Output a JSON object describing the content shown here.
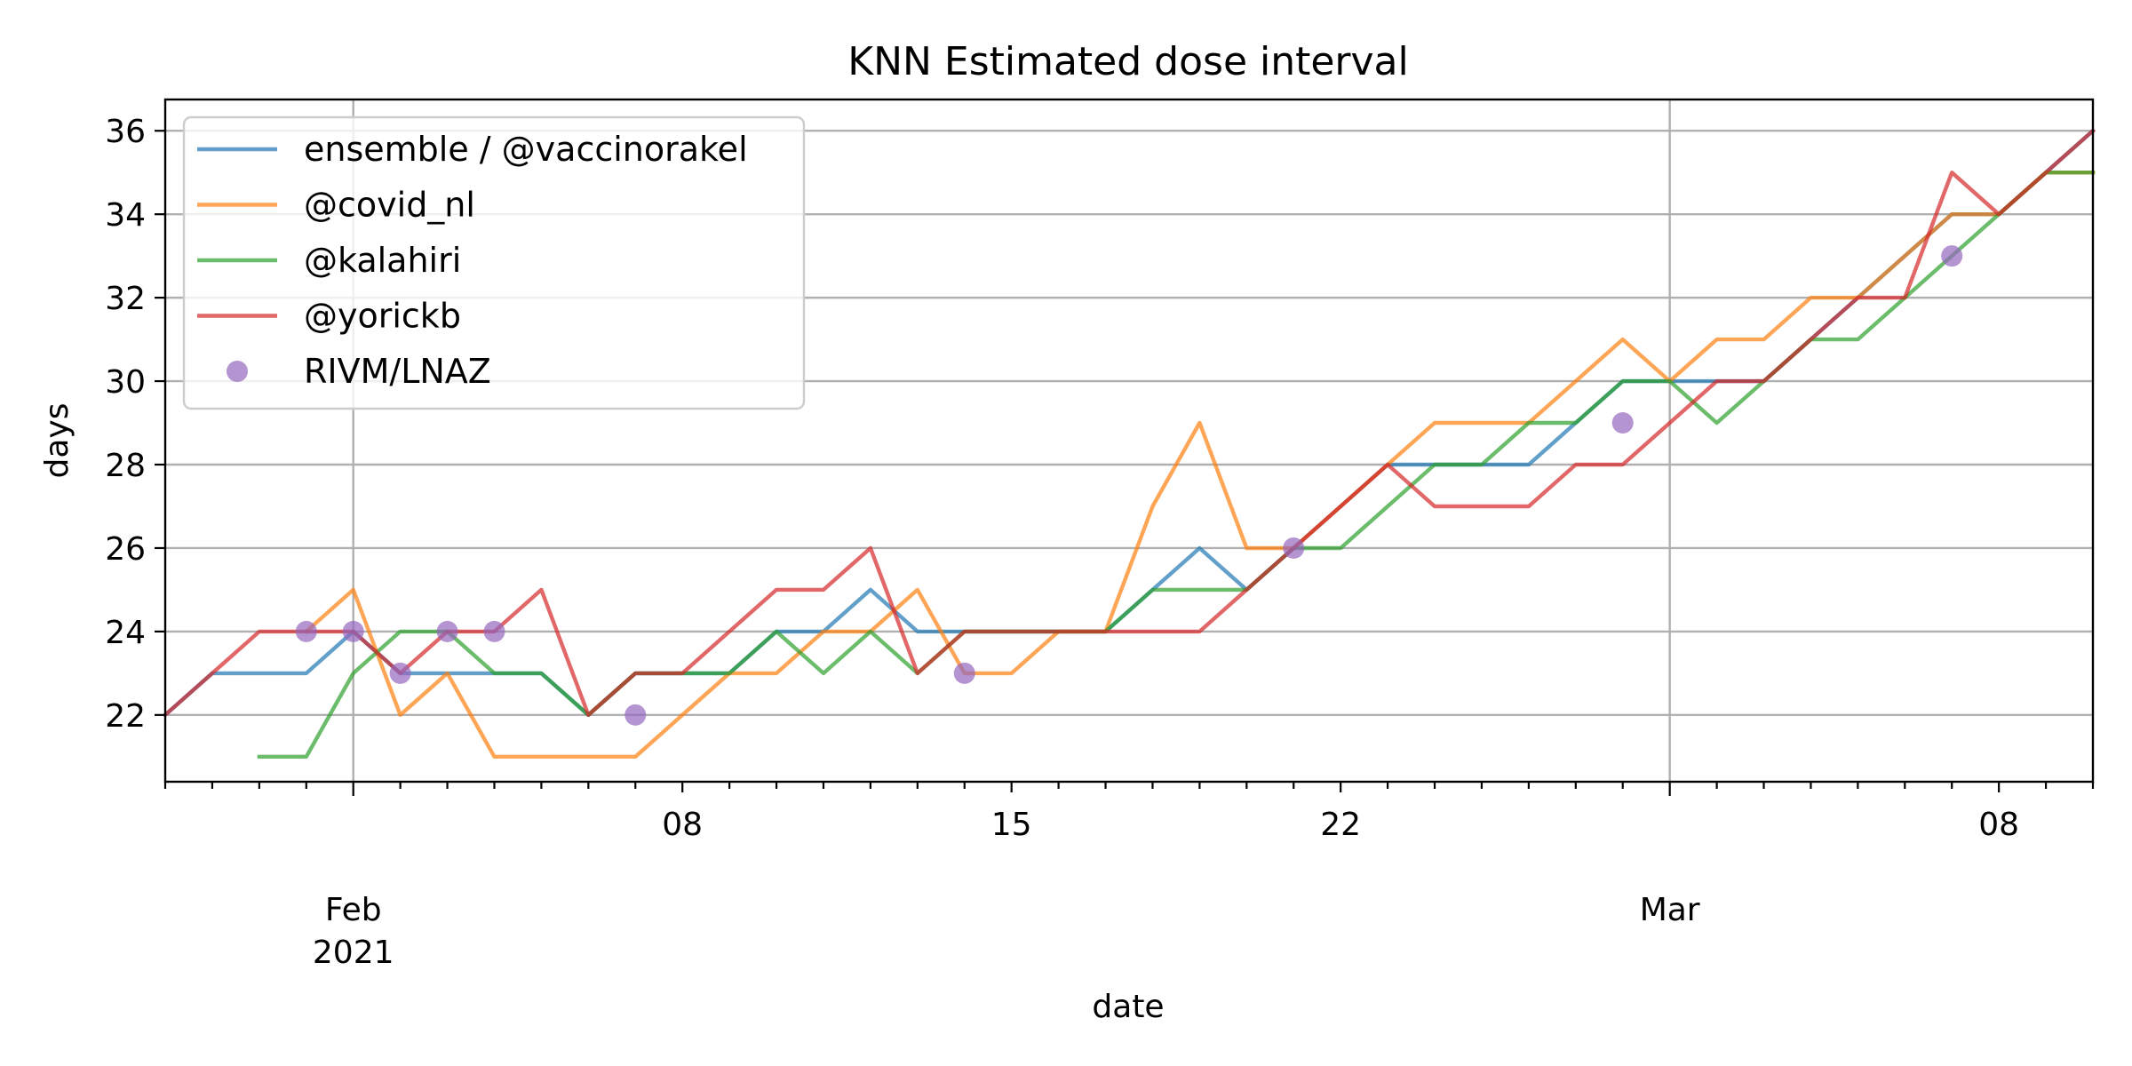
{
  "chart_data": {
    "type": "line",
    "title": "KNN Estimated dose interval",
    "xlabel": "date",
    "ylabel": "days",
    "x_range": [
      "2021-01-28",
      "2021-03-10"
    ],
    "ylim": [
      20.4,
      36.75
    ],
    "y_ticks": [
      22,
      24,
      26,
      28,
      30,
      32,
      34,
      36
    ],
    "x_ticks": [
      {
        "date": "2021-02-01",
        "label": "Feb",
        "sublabel": "2021"
      },
      {
        "date": "2021-02-08",
        "label": "08"
      },
      {
        "date": "2021-02-15",
        "label": "15"
      },
      {
        "date": "2021-02-22",
        "label": "22"
      },
      {
        "date": "2021-03-01",
        "label": "Mar"
      },
      {
        "date": "2021-03-08",
        "label": "08"
      }
    ],
    "grid": true,
    "legend_position": "upper-left",
    "series": [
      {
        "name": "ensemble / @vaccinorakel",
        "kind": "line",
        "color": "#1f77b4",
        "points": [
          [
            "2021-01-28",
            22
          ],
          [
            "2021-01-29",
            23
          ],
          [
            "2021-01-30",
            23
          ],
          [
            "2021-01-31",
            23
          ],
          [
            "2021-02-01",
            24
          ],
          [
            "2021-02-02",
            23
          ],
          [
            "2021-02-03",
            23
          ],
          [
            "2021-02-04",
            23
          ],
          [
            "2021-02-05",
            23
          ],
          [
            "2021-02-06",
            22
          ],
          [
            "2021-02-07",
            23
          ],
          [
            "2021-02-08",
            23
          ],
          [
            "2021-02-09",
            23
          ],
          [
            "2021-02-10",
            24
          ],
          [
            "2021-02-11",
            24
          ],
          [
            "2021-02-12",
            25
          ],
          [
            "2021-02-13",
            24
          ],
          [
            "2021-02-14",
            24
          ],
          [
            "2021-02-15",
            24
          ],
          [
            "2021-02-16",
            24
          ],
          [
            "2021-02-17",
            24
          ],
          [
            "2021-02-18",
            25
          ],
          [
            "2021-02-19",
            26
          ],
          [
            "2021-02-20",
            25
          ],
          [
            "2021-02-21",
            26
          ],
          [
            "2021-02-22",
            27
          ],
          [
            "2021-02-23",
            28
          ],
          [
            "2021-02-24",
            28
          ],
          [
            "2021-02-25",
            28
          ],
          [
            "2021-02-26",
            28
          ],
          [
            "2021-02-27",
            29
          ],
          [
            "2021-02-28",
            30
          ],
          [
            "2021-03-01",
            30
          ],
          [
            "2021-03-02",
            30
          ],
          [
            "2021-03-03",
            30
          ],
          [
            "2021-03-04",
            31
          ],
          [
            "2021-03-05",
            32
          ],
          [
            "2021-03-06",
            33
          ],
          [
            "2021-03-07",
            34
          ],
          [
            "2021-03-08",
            34
          ],
          [
            "2021-03-09",
            35
          ],
          [
            "2021-03-10",
            36
          ]
        ]
      },
      {
        "name": "@covid_nl",
        "kind": "line",
        "color": "#ff7f0e",
        "points": [
          [
            "2021-01-31",
            24
          ],
          [
            "2021-02-01",
            25
          ],
          [
            "2021-02-02",
            22
          ],
          [
            "2021-02-03",
            23
          ],
          [
            "2021-02-04",
            21
          ],
          [
            "2021-02-05",
            21
          ],
          [
            "2021-02-06",
            21
          ],
          [
            "2021-02-07",
            21
          ],
          [
            "2021-02-08",
            22
          ],
          [
            "2021-02-09",
            23
          ],
          [
            "2021-02-10",
            23
          ],
          [
            "2021-02-11",
            24
          ],
          [
            "2021-02-12",
            24
          ],
          [
            "2021-02-13",
            25
          ],
          [
            "2021-02-14",
            23
          ],
          [
            "2021-02-15",
            23
          ],
          [
            "2021-02-16",
            24
          ],
          [
            "2021-02-17",
            24
          ],
          [
            "2021-02-18",
            27
          ],
          [
            "2021-02-19",
            29
          ],
          [
            "2021-02-20",
            26
          ],
          [
            "2021-02-21",
            26
          ],
          [
            "2021-02-22",
            27
          ],
          [
            "2021-02-23",
            28
          ],
          [
            "2021-02-24",
            29
          ],
          [
            "2021-02-25",
            29
          ],
          [
            "2021-02-26",
            29
          ],
          [
            "2021-02-27",
            30
          ],
          [
            "2021-02-28",
            31
          ],
          [
            "2021-03-01",
            30
          ],
          [
            "2021-03-02",
            31
          ],
          [
            "2021-03-03",
            31
          ],
          [
            "2021-03-04",
            32
          ],
          [
            "2021-03-05",
            32
          ],
          [
            "2021-03-06",
            33
          ],
          [
            "2021-03-07",
            34
          ],
          [
            "2021-03-08",
            34
          ],
          [
            "2021-03-09",
            35
          ],
          [
            "2021-03-10",
            35
          ]
        ]
      },
      {
        "name": "@kalahiri",
        "kind": "line",
        "color": "#2ca02c",
        "points": [
          [
            "2021-01-30",
            21
          ],
          [
            "2021-01-31",
            21
          ],
          [
            "2021-02-01",
            23
          ],
          [
            "2021-02-02",
            24
          ],
          [
            "2021-02-03",
            24
          ],
          [
            "2021-02-04",
            23
          ],
          [
            "2021-02-05",
            23
          ],
          [
            "2021-02-06",
            22
          ],
          [
            "2021-02-07",
            23
          ],
          [
            "2021-02-08",
            23
          ],
          [
            "2021-02-09",
            23
          ],
          [
            "2021-02-10",
            24
          ],
          [
            "2021-02-11",
            23
          ],
          [
            "2021-02-12",
            24
          ],
          [
            "2021-02-13",
            23
          ],
          [
            "2021-02-14",
            24
          ],
          [
            "2021-02-15",
            24
          ],
          [
            "2021-02-16",
            24
          ],
          [
            "2021-02-17",
            24
          ],
          [
            "2021-02-18",
            25
          ],
          [
            "2021-02-19",
            25
          ],
          [
            "2021-02-20",
            25
          ],
          [
            "2021-02-21",
            26
          ],
          [
            "2021-02-22",
            26
          ],
          [
            "2021-02-23",
            27
          ],
          [
            "2021-02-24",
            28
          ],
          [
            "2021-02-25",
            28
          ],
          [
            "2021-02-26",
            29
          ],
          [
            "2021-02-27",
            29
          ],
          [
            "2021-02-28",
            30
          ],
          [
            "2021-03-01",
            30
          ],
          [
            "2021-03-02",
            29
          ],
          [
            "2021-03-03",
            30
          ],
          [
            "2021-03-04",
            31
          ],
          [
            "2021-03-05",
            31
          ],
          [
            "2021-03-06",
            32
          ],
          [
            "2021-03-07",
            33
          ],
          [
            "2021-03-08",
            34
          ],
          [
            "2021-03-09",
            35
          ],
          [
            "2021-03-10",
            35
          ]
        ]
      },
      {
        "name": "@yorickb",
        "kind": "line",
        "color": "#d62728",
        "points": [
          [
            "2021-01-28",
            22
          ],
          [
            "2021-01-29",
            23
          ],
          [
            "2021-01-30",
            24
          ],
          [
            "2021-01-31",
            24
          ],
          [
            "2021-02-01",
            24
          ],
          [
            "2021-02-02",
            23
          ],
          [
            "2021-02-03",
            24
          ],
          [
            "2021-02-04",
            24
          ],
          [
            "2021-02-05",
            25
          ],
          [
            "2021-02-06",
            22
          ],
          [
            "2021-02-07",
            23
          ],
          [
            "2021-02-08",
            23
          ],
          [
            "2021-02-09",
            24
          ],
          [
            "2021-02-10",
            25
          ],
          [
            "2021-02-11",
            25
          ],
          [
            "2021-02-12",
            26
          ],
          [
            "2021-02-13",
            23
          ],
          [
            "2021-02-14",
            24
          ],
          [
            "2021-02-15",
            24
          ],
          [
            "2021-02-16",
            24
          ],
          [
            "2021-02-17",
            24
          ],
          [
            "2021-02-18",
            24
          ],
          [
            "2021-02-19",
            24
          ],
          [
            "2021-02-20",
            25
          ],
          [
            "2021-02-21",
            26
          ],
          [
            "2021-02-22",
            27
          ],
          [
            "2021-02-23",
            28
          ],
          [
            "2021-02-24",
            27
          ],
          [
            "2021-02-25",
            27
          ],
          [
            "2021-02-26",
            27
          ],
          [
            "2021-02-27",
            28
          ],
          [
            "2021-02-28",
            28
          ],
          [
            "2021-03-01",
            29
          ],
          [
            "2021-03-02",
            30
          ],
          [
            "2021-03-03",
            30
          ],
          [
            "2021-03-04",
            31
          ],
          [
            "2021-03-05",
            32
          ],
          [
            "2021-03-06",
            32
          ],
          [
            "2021-03-07",
            35
          ],
          [
            "2021-03-08",
            34
          ],
          [
            "2021-03-09",
            35
          ],
          [
            "2021-03-10",
            36
          ]
        ]
      },
      {
        "name": "RIVM/LNAZ",
        "kind": "scatter",
        "color": "#9467bd",
        "points": [
          [
            "2021-01-31",
            24
          ],
          [
            "2021-02-01",
            24
          ],
          [
            "2021-02-02",
            23
          ],
          [
            "2021-02-03",
            24
          ],
          [
            "2021-02-04",
            24
          ],
          [
            "2021-02-07",
            22
          ],
          [
            "2021-02-14",
            23
          ],
          [
            "2021-02-21",
            26
          ],
          [
            "2021-02-28",
            29
          ],
          [
            "2021-03-07",
            33
          ]
        ]
      }
    ]
  }
}
